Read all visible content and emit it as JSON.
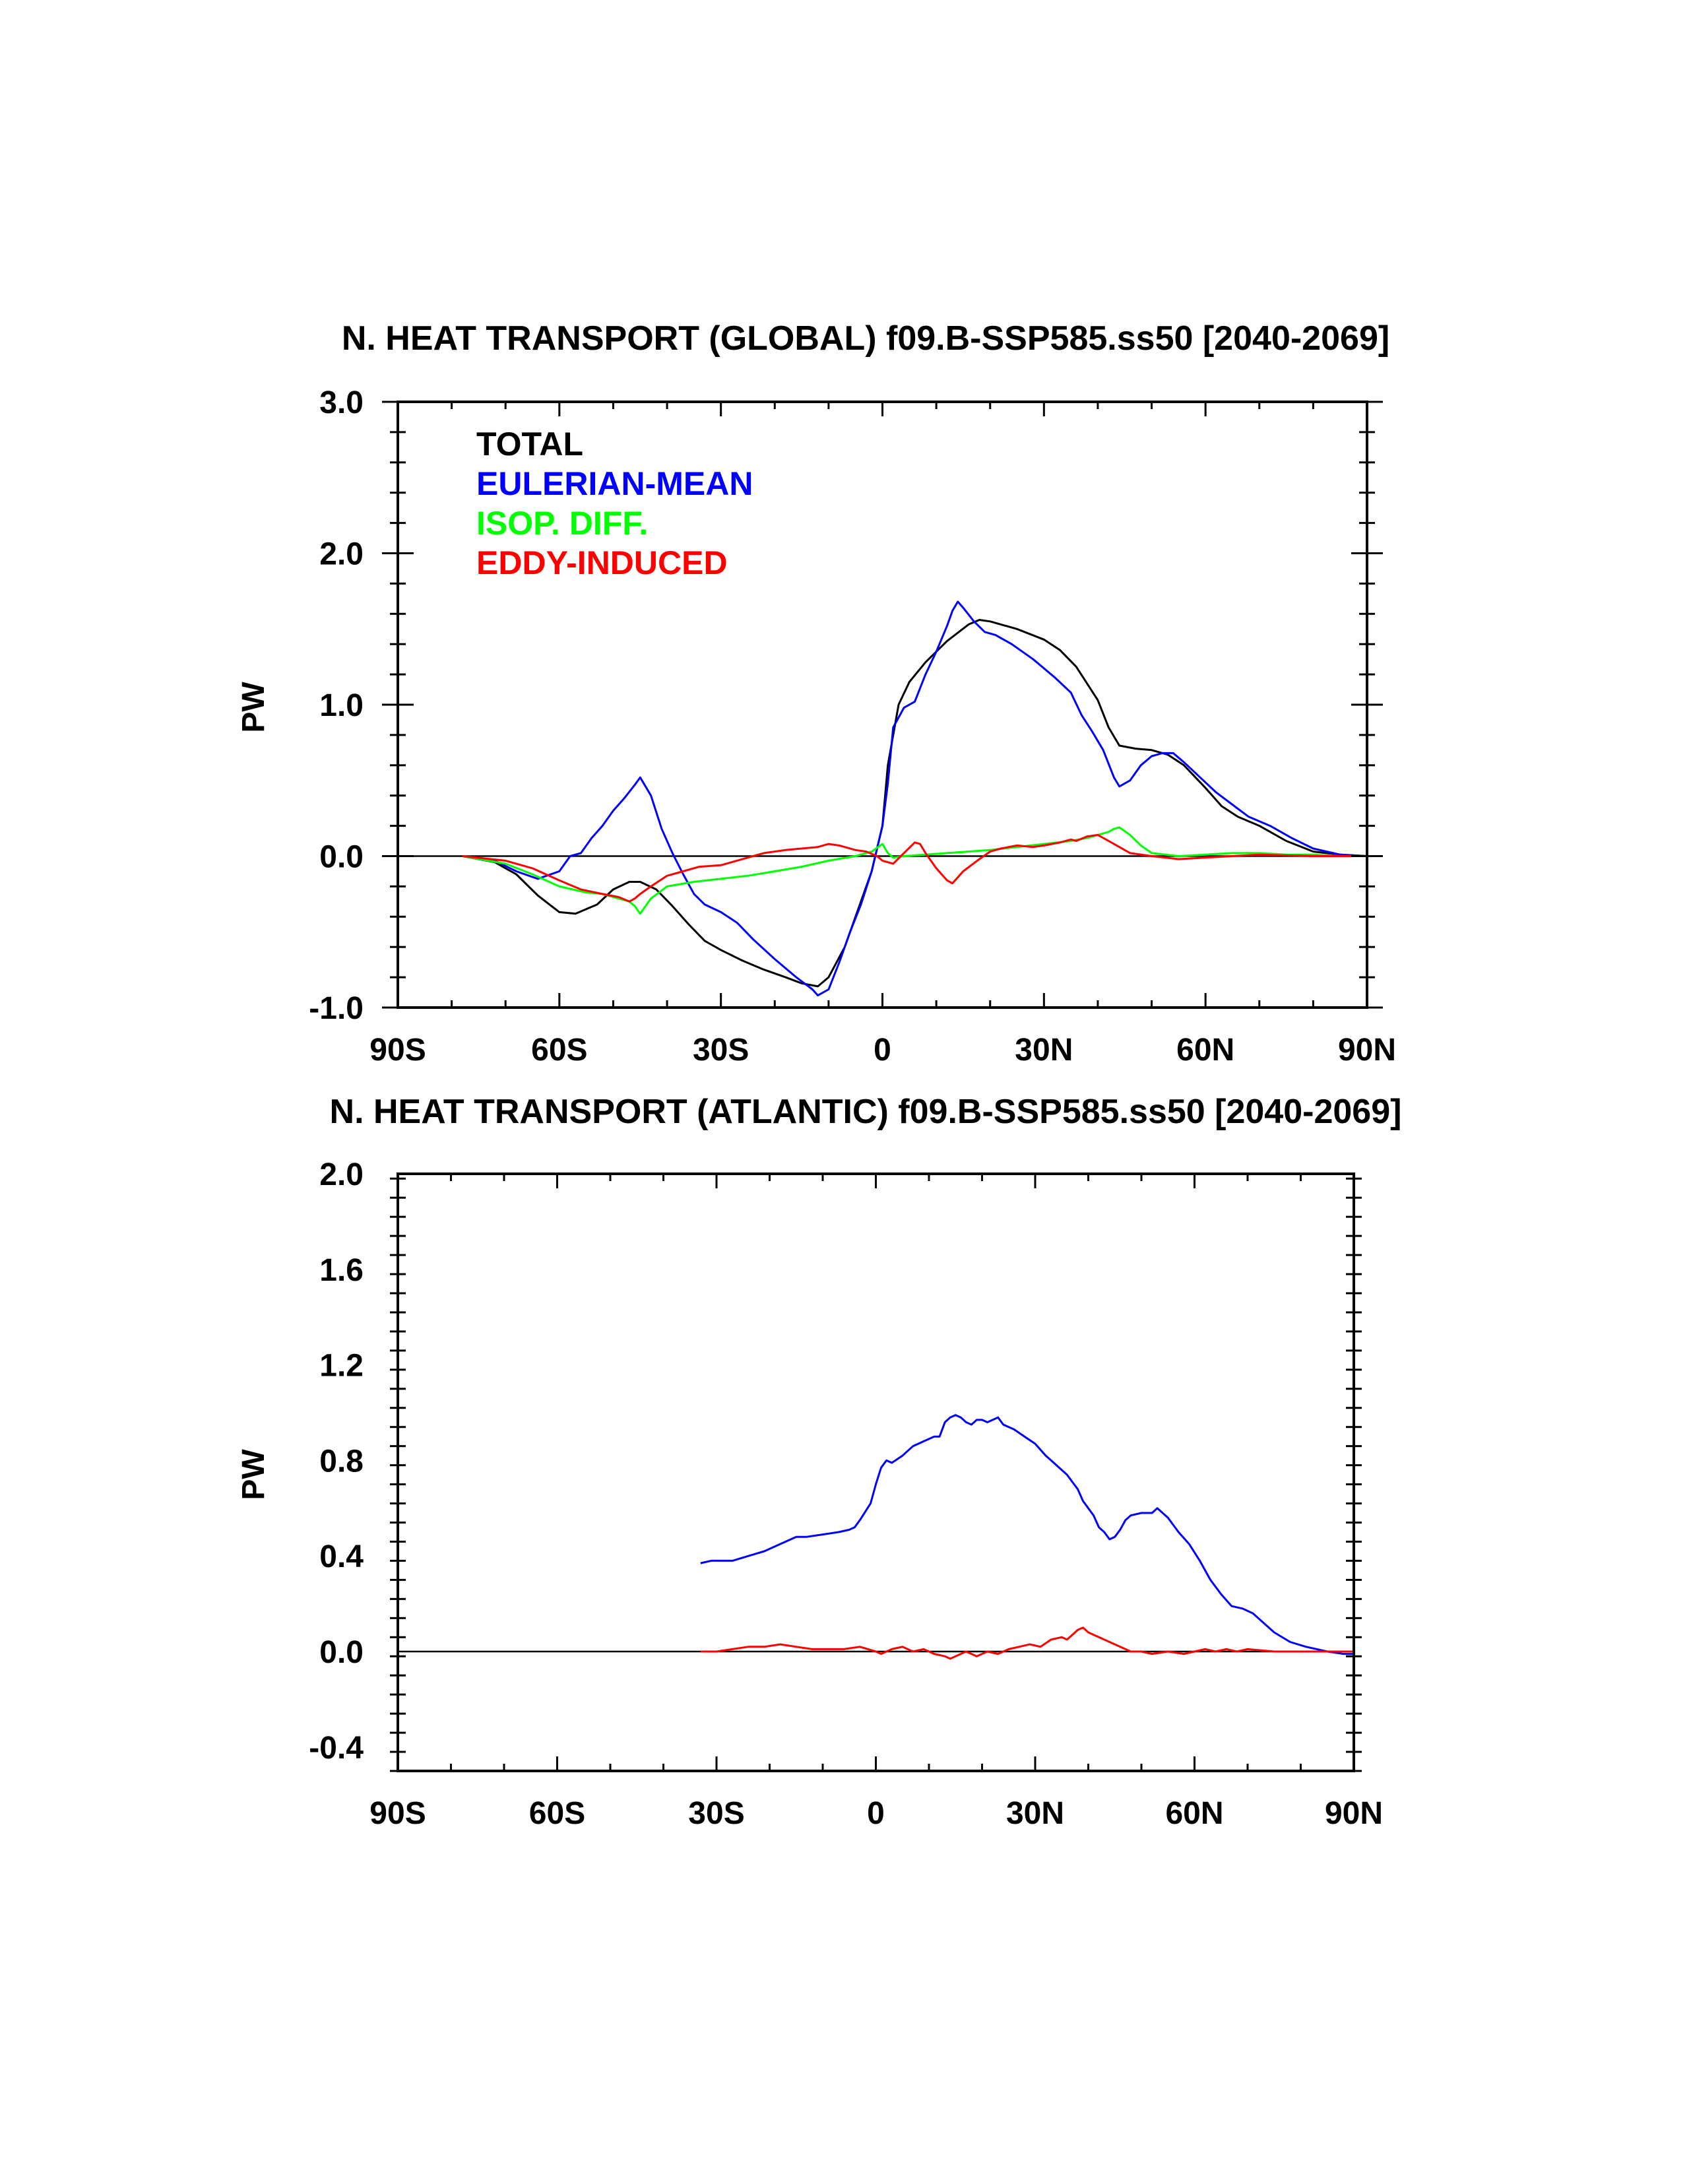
{
  "chart_data": [
    {
      "type": "line",
      "title": "N. HEAT TRANSPORT (GLOBAL) f09.B-SSP585.ss50 [2040-2069]",
      "ylabel": "PW",
      "xlim": [
        -90,
        90
      ],
      "ylim": [
        -1.0,
        3.0
      ],
      "xticks": [
        -90,
        -60,
        -30,
        0,
        30,
        60,
        90
      ],
      "xtick_labels": [
        "90S",
        "60S",
        "30S",
        "0",
        "30N",
        "60N",
        "90N"
      ],
      "yticks": [
        -1.0,
        0.0,
        1.0,
        2.0,
        3.0
      ],
      "ytick_labels": [
        "-1.0",
        "0.0",
        "1.0",
        "2.0",
        "3.0"
      ],
      "grid": false,
      "legend_position": "top-left",
      "zero_line": true,
      "series": [
        {
          "name": "TOTAL",
          "color": "#000000",
          "x": [
            -78,
            -72,
            -68,
            -64,
            -60,
            -57,
            -53,
            -50,
            -47,
            -45,
            -42,
            -39,
            -36,
            -33,
            -30,
            -26,
            -22,
            -18,
            -15,
            -12,
            -10,
            -7,
            -4,
            -2,
            0,
            1,
            3,
            5,
            8,
            12,
            16,
            18,
            20,
            25,
            30,
            33,
            36,
            40,
            42,
            44,
            47,
            50,
            53,
            56,
            60,
            63,
            66,
            70,
            75,
            80,
            85,
            90
          ],
          "y": [
            0.0,
            -0.04,
            -0.12,
            -0.26,
            -0.37,
            -0.38,
            -0.32,
            -0.22,
            -0.17,
            -0.17,
            -0.22,
            -0.33,
            -0.45,
            -0.56,
            -0.62,
            -0.69,
            -0.75,
            -0.8,
            -0.84,
            -0.86,
            -0.8,
            -0.6,
            -0.3,
            -0.1,
            0.2,
            0.6,
            1.0,
            1.15,
            1.28,
            1.42,
            1.53,
            1.56,
            1.55,
            1.5,
            1.43,
            1.36,
            1.25,
            1.03,
            0.85,
            0.73,
            0.71,
            0.7,
            0.67,
            0.6,
            0.45,
            0.33,
            0.26,
            0.2,
            0.1,
            0.03,
            0.01,
            0.0
          ]
        },
        {
          "name": "EULERIAN-MEAN",
          "color": "#0000ff",
          "x": [
            -78,
            -72,
            -68,
            -64,
            -60,
            -58,
            -56,
            -54,
            -52,
            -50,
            -48,
            -46,
            -45,
            -43,
            -41,
            -39,
            -37,
            -35,
            -33,
            -30,
            -27,
            -24,
            -20,
            -16,
            -13,
            -12,
            -10,
            -8,
            -6,
            -4,
            -2,
            0,
            1,
            2,
            4,
            6,
            8,
            10,
            12,
            13,
            14,
            15,
            17,
            19,
            21,
            24,
            28,
            32,
            35,
            37,
            39,
            41,
            43,
            44,
            46,
            48,
            50,
            52,
            54,
            56,
            59,
            62,
            65,
            68,
            72,
            76,
            80,
            85,
            90
          ],
          "y": [
            0.0,
            -0.03,
            -0.1,
            -0.15,
            -0.1,
            0.0,
            0.02,
            0.12,
            0.2,
            0.3,
            0.38,
            0.47,
            0.52,
            0.4,
            0.18,
            0.02,
            -0.12,
            -0.25,
            -0.32,
            -0.37,
            -0.44,
            -0.55,
            -0.68,
            -0.8,
            -0.88,
            -0.92,
            -0.88,
            -0.7,
            -0.5,
            -0.32,
            -0.1,
            0.2,
            0.48,
            0.85,
            0.98,
            1.02,
            1.2,
            1.35,
            1.52,
            1.62,
            1.68,
            1.64,
            1.55,
            1.48,
            1.46,
            1.4,
            1.3,
            1.18,
            1.08,
            0.93,
            0.82,
            0.7,
            0.52,
            0.46,
            0.5,
            0.6,
            0.66,
            0.68,
            0.68,
            0.62,
            0.52,
            0.42,
            0.34,
            0.26,
            0.2,
            0.12,
            0.05,
            0.01,
            0.0
          ]
        },
        {
          "name": "ISOP. DIFF.",
          "color": "#00ff00",
          "x": [
            -78,
            -70,
            -65,
            -60,
            -55,
            -52,
            -49,
            -47,
            -46,
            -45,
            -43,
            -40,
            -35,
            -30,
            -25,
            -20,
            -15,
            -10,
            -5,
            -2,
            0,
            1,
            2,
            4,
            8,
            12,
            16,
            20,
            25,
            30,
            35,
            38,
            40,
            42,
            43,
            44,
            46,
            48,
            50,
            55,
            60,
            65,
            70,
            75,
            80,
            85,
            90
          ],
          "y": [
            0.0,
            -0.05,
            -0.12,
            -0.2,
            -0.24,
            -0.25,
            -0.28,
            -0.3,
            -0.33,
            -0.38,
            -0.28,
            -0.2,
            -0.17,
            -0.15,
            -0.13,
            -0.1,
            -0.07,
            -0.03,
            0.0,
            0.03,
            0.08,
            0.02,
            -0.01,
            0.0,
            0.01,
            0.02,
            0.03,
            0.04,
            0.06,
            0.08,
            0.1,
            0.12,
            0.14,
            0.16,
            0.18,
            0.19,
            0.14,
            0.07,
            0.02,
            0.0,
            0.01,
            0.02,
            0.02,
            0.01,
            0.01,
            0.0,
            0.0
          ]
        },
        {
          "name": "EDDY-INDUCED",
          "color": "#ff0000",
          "x": [
            -78,
            -70,
            -65,
            -60,
            -56,
            -52,
            -49,
            -47,
            -46,
            -45,
            -43,
            -40,
            -37,
            -34,
            -30,
            -26,
            -22,
            -18,
            -15,
            -12,
            -10,
            -8,
            -5,
            -3,
            -1,
            0,
            2,
            4,
            6,
            7,
            8,
            10,
            12,
            13,
            15,
            18,
            20,
            22,
            25,
            28,
            30,
            33,
            35,
            36,
            38,
            40,
            42,
            44,
            46,
            50,
            55,
            60,
            65,
            70,
            80,
            90
          ],
          "y": [
            0.0,
            -0.03,
            -0.08,
            -0.16,
            -0.22,
            -0.25,
            -0.27,
            -0.3,
            -0.28,
            -0.25,
            -0.2,
            -0.13,
            -0.1,
            -0.07,
            -0.06,
            -0.02,
            0.02,
            0.04,
            0.05,
            0.06,
            0.08,
            0.07,
            0.04,
            0.03,
            0.0,
            -0.03,
            -0.05,
            0.02,
            0.09,
            0.08,
            0.02,
            -0.08,
            -0.16,
            -0.18,
            -0.1,
            -0.02,
            0.03,
            0.05,
            0.07,
            0.06,
            0.07,
            0.09,
            0.11,
            0.1,
            0.13,
            0.14,
            0.1,
            0.06,
            0.02,
            0.0,
            -0.02,
            -0.01,
            0.0,
            0.01,
            0.0,
            0.0
          ]
        }
      ]
    },
    {
      "type": "line",
      "title": "N. HEAT TRANSPORT (ATLANTIC) f09.B-SSP585.ss50 [2040-2069]",
      "ylabel": "PW",
      "xlim": [
        -90,
        90
      ],
      "ylim": [
        -0.5,
        2.0
      ],
      "xticks": [
        -90,
        -60,
        -30,
        0,
        30,
        60,
        90
      ],
      "xtick_labels": [
        "90S",
        "60S",
        "30S",
        "0",
        "30N",
        "60N",
        "90N"
      ],
      "yticks": [
        -0.4,
        0.0,
        0.4,
        0.8,
        1.2,
        1.6,
        2.0
      ],
      "ytick_labels": [
        "-0.4",
        "0.0",
        "0.4",
        "0.8",
        "1.2",
        "1.6",
        "2.0"
      ],
      "grid": false,
      "zero_line": true,
      "series": [
        {
          "name": "",
          "color": "#0000ff",
          "x": [
            -33,
            -31,
            -29,
            -27,
            -24,
            -21,
            -19,
            -17,
            -15,
            -13,
            -10,
            -7,
            -5,
            -4,
            -3,
            -1,
            0,
            1,
            2,
            3,
            5,
            7,
            9,
            11,
            12,
            13,
            14,
            15,
            16,
            17,
            18,
            19,
            20,
            21,
            23,
            24,
            26,
            28,
            30,
            32,
            33,
            35,
            36,
            38,
            39,
            40,
            41,
            42,
            43,
            44,
            45,
            46,
            47,
            48,
            50,
            52,
            53,
            54,
            55,
            57,
            59,
            61,
            63,
            65,
            67,
            69,
            71,
            73,
            75,
            78,
            81,
            85,
            88,
            90
          ],
          "y": [
            0.37,
            0.38,
            0.38,
            0.38,
            0.4,
            0.42,
            0.44,
            0.46,
            0.48,
            0.48,
            0.49,
            0.5,
            0.51,
            0.52,
            0.55,
            0.62,
            0.7,
            0.77,
            0.8,
            0.79,
            0.82,
            0.86,
            0.88,
            0.9,
            0.9,
            0.96,
            0.98,
            0.99,
            0.98,
            0.96,
            0.95,
            0.97,
            0.97,
            0.96,
            0.98,
            0.95,
            0.93,
            0.9,
            0.87,
            0.82,
            0.8,
            0.76,
            0.74,
            0.68,
            0.63,
            0.6,
            0.57,
            0.52,
            0.5,
            0.47,
            0.48,
            0.51,
            0.55,
            0.57,
            0.58,
            0.58,
            0.6,
            0.58,
            0.56,
            0.5,
            0.45,
            0.38,
            0.3,
            0.24,
            0.19,
            0.18,
            0.16,
            0.12,
            0.08,
            0.04,
            0.02,
            0.0,
            -0.01,
            -0.01
          ]
        },
        {
          "name": "",
          "color": "#ff0000",
          "x": [
            -33,
            -30,
            -27,
            -24,
            -21,
            -18,
            -15,
            -12,
            -9,
            -6,
            -3,
            0,
            1,
            3,
            5,
            7,
            9,
            11,
            13,
            14,
            15,
            17,
            19,
            21,
            23,
            25,
            27,
            29,
            31,
            33,
            35,
            36,
            37,
            38,
            39,
            40,
            42,
            44,
            46,
            48,
            50,
            52,
            55,
            58,
            60,
            62,
            64,
            66,
            68,
            70,
            75,
            80,
            85,
            90
          ],
          "y": [
            0.0,
            0.0,
            0.01,
            0.02,
            0.02,
            0.03,
            0.02,
            0.01,
            0.01,
            0.01,
            0.02,
            0.0,
            -0.01,
            0.01,
            0.02,
            0.0,
            0.01,
            -0.01,
            -0.02,
            -0.03,
            -0.02,
            0.0,
            -0.02,
            0.0,
            -0.01,
            0.01,
            0.02,
            0.03,
            0.02,
            0.05,
            0.06,
            0.05,
            0.07,
            0.09,
            0.1,
            0.08,
            0.06,
            0.04,
            0.02,
            0.0,
            0.0,
            -0.01,
            0.0,
            -0.01,
            0.0,
            0.01,
            0.0,
            0.01,
            0.0,
            0.01,
            0.0,
            0.0,
            0.0,
            0.0
          ]
        }
      ]
    }
  ]
}
